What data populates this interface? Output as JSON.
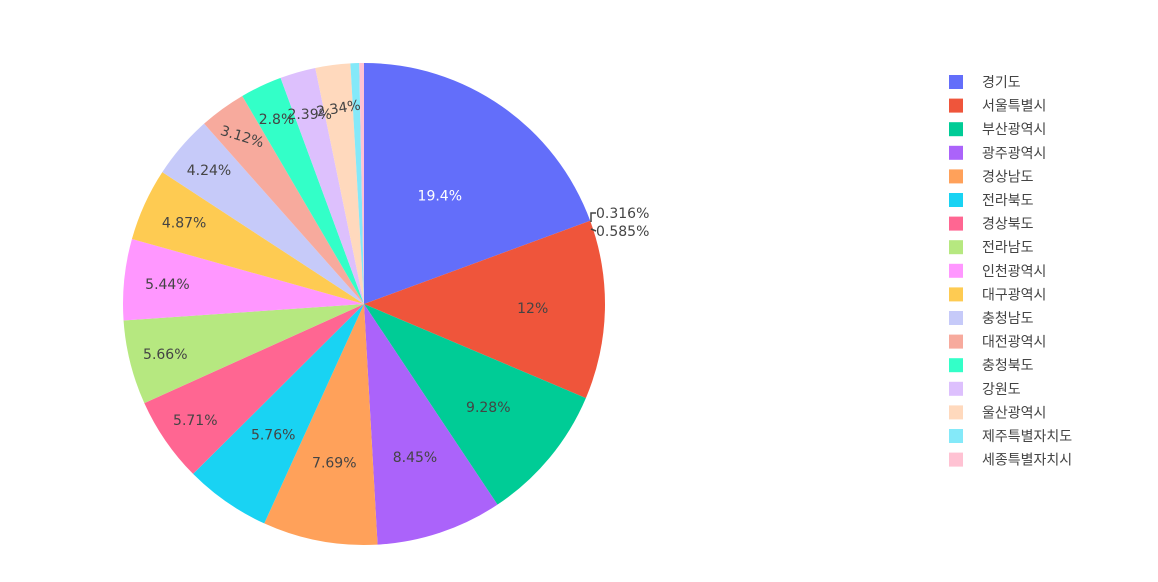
{
  "chart_data": {
    "type": "pie",
    "labels": [
      "경기도",
      "서울특별시",
      "부산광역시",
      "광주광역시",
      "경상남도",
      "전라북도",
      "경상북도",
      "전라남도",
      "인천광역시",
      "대구광역시",
      "충청남도",
      "대전광역시",
      "충청북도",
      "강원도",
      "울산광역시",
      "제주특별자치도",
      "세종특별자치시"
    ],
    "values": [
      19.4,
      12,
      9.28,
      8.45,
      7.69,
      5.76,
      5.71,
      5.66,
      5.44,
      4.87,
      4.24,
      3.12,
      2.8,
      2.39,
      2.34,
      0.585,
      0.316
    ],
    "slice_text": [
      "19.4%",
      "12%",
      "9.28%",
      "8.45%",
      "7.69%",
      "5.76%",
      "5.71%",
      "5.66%",
      "5.44%",
      "4.87%",
      "4.24%",
      "3.12%",
      "2.8%",
      "2.39%",
      "2.34%",
      "0.585%",
      "0.316%"
    ],
    "colors": [
      "#636efa",
      "#EF553B",
      "#00cc96",
      "#ab63fa",
      "#FFA15A",
      "#19d3f3",
      "#FF6692",
      "#B6E880",
      "#FF97FF",
      "#FECB52",
      "#c6caf9",
      "#f7aa9d",
      "#33ffc8",
      "#ddc0fd",
      "#ffd9bd",
      "#84e9f9",
      "#ffc2d3"
    ],
    "text_colors": [
      "#ffffff",
      "#444444",
      "#444444",
      "#444444",
      "#444444",
      "#444444",
      "#444444",
      "#444444",
      "#444444",
      "#444444",
      "#444444",
      "#444444",
      "#444444",
      "#444444",
      "#444444",
      "#444444",
      "#444444"
    ],
    "direction": "clockwise",
    "start_angle": "top",
    "legend_placement": "right"
  }
}
